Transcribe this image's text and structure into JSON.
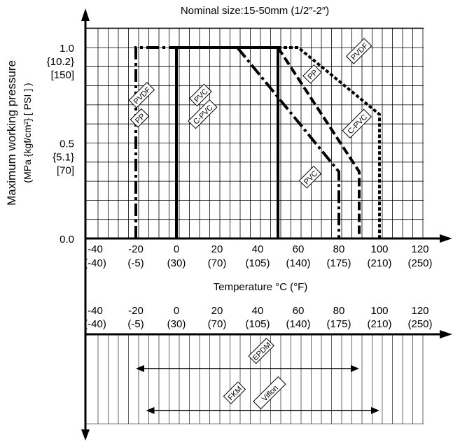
{
  "chart_data": [
    {
      "type": "line",
      "title": "Nominal size:15-50mm (1/2″-2″)",
      "xlabel": "Temperature °C (°F)",
      "ylabel": "Maximum working pressure",
      "ylabel_units": "(MPa {kgf/cm²} [ PSI ] )",
      "xlim": [
        -60,
        130
      ],
      "ylim": [
        0,
        1.1
      ],
      "x_ticks": [
        {
          "c": "-40",
          "f": "(-40)"
        },
        {
          "c": "-20",
          "f": "(-5)"
        },
        {
          "c": "0",
          "f": "(30)"
        },
        {
          "c": "20",
          "f": "(70)"
        },
        {
          "c": "40",
          "f": "(105)"
        },
        {
          "c": "60",
          "f": "(140)"
        },
        {
          "c": "80",
          "f": "(175)"
        },
        {
          "c": "100",
          "f": "(210)"
        },
        {
          "c": "120",
          "f": "(250)"
        }
      ],
      "x_tick_values": [
        -40,
        -20,
        0,
        20,
        40,
        60,
        80,
        100,
        120
      ],
      "y_ticks": [
        {
          "value": 0.0,
          "lines": [
            "0.0"
          ]
        },
        {
          "value": 0.5,
          "lines": [
            "0.5",
            "{5.1}",
            "[70]"
          ]
        },
        {
          "value": 1.0,
          "lines": [
            "1.0",
            "{10.2}",
            "[150]"
          ]
        }
      ],
      "series": [
        {
          "name": "PVC",
          "style": "solid",
          "x": [
            0,
            0,
            50,
            50
          ],
          "y": [
            0,
            1.0,
            1.0,
            0
          ]
        },
        {
          "name": "PVC",
          "style": "dashdot",
          "x": [
            30,
            80,
            80
          ],
          "y": [
            1.0,
            0.35,
            0
          ]
        },
        {
          "name": "PP",
          "style": "dashdot",
          "x": [
            -20,
            -20,
            30
          ],
          "y": [
            0,
            1.0,
            1.0
          ]
        },
        {
          "name": "PP",
          "style": "dashed",
          "x": [
            50,
            90,
            90
          ],
          "y": [
            1.0,
            0.35,
            0
          ]
        },
        {
          "name": "PVDF",
          "style": "dotted",
          "x": [
            50,
            60,
            100,
            100
          ],
          "y": [
            1.0,
            1.0,
            0.65,
            0
          ]
        }
      ],
      "labels": [
        {
          "text": "PVDF",
          "x": -17,
          "y": 0.75
        },
        {
          "text": "PP",
          "x": -18,
          "y": 0.63
        },
        {
          "text": "PVC",
          "x": 12,
          "y": 0.75
        },
        {
          "text": "C-PVC",
          "x": 13,
          "y": 0.65
        },
        {
          "text": "PP",
          "x": 67,
          "y": 0.86
        },
        {
          "text": "PVDF",
          "x": 90,
          "y": 0.98
        },
        {
          "text": "C-PVC",
          "x": 89,
          "y": 0.6
        },
        {
          "text": "PVC",
          "x": 66,
          "y": 0.32
        }
      ]
    },
    {
      "type": "range",
      "xlim": [
        -60,
        130
      ],
      "x_ticks": [
        {
          "c": "-40",
          "f": "(-40)"
        },
        {
          "c": "-20",
          "f": "(-5)"
        },
        {
          "c": "0",
          "f": "(30)"
        },
        {
          "c": "20",
          "f": "(70)"
        },
        {
          "c": "40",
          "f": "(105)"
        },
        {
          "c": "60",
          "f": "(140)"
        },
        {
          "c": "80",
          "f": "(175)"
        },
        {
          "c": "100",
          "f": "(210)"
        },
        {
          "c": "120",
          "f": "(250)"
        }
      ],
      "x_tick_values": [
        -40,
        -20,
        0,
        20,
        40,
        60,
        80,
        100,
        120
      ],
      "ranges": [
        {
          "labels": [
            "EPDM"
          ],
          "start": -20,
          "end": 90
        },
        {
          "labels": [
            "FKM",
            "Viflon"
          ],
          "start": -15,
          "end": 100
        }
      ]
    }
  ]
}
